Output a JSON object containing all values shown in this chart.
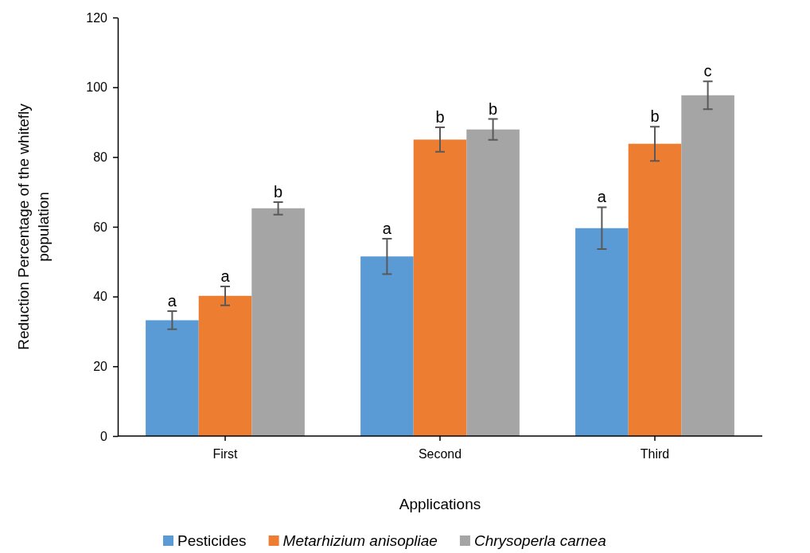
{
  "chart_data": {
    "type": "bar",
    "xlabel": "Applications",
    "ylabel": "Reduction Percentage of the whitefly population",
    "categories": [
      "First",
      "Second",
      "Third"
    ],
    "series": [
      {
        "name": "Pesticides",
        "color": "#5b9bd5",
        "values": [
          33.2,
          51.5,
          59.6
        ],
        "errors": [
          2.6,
          5.1,
          6.0
        ],
        "value_labels": [
          "a",
          "a",
          "a"
        ]
      },
      {
        "name": "Metarhizium anisopliae",
        "color": "#ed7d31",
        "values": [
          40.2,
          85.0,
          83.8
        ],
        "errors": [
          2.7,
          3.5,
          4.9
        ],
        "value_labels": [
          "a",
          "b",
          "b"
        ]
      },
      {
        "name": "Chrysoperla carnea",
        "color": "#a5a5a5",
        "values": [
          65.3,
          87.9,
          97.7
        ],
        "errors": [
          1.8,
          3.0,
          4.0
        ],
        "value_labels": [
          "b",
          "b",
          "c"
        ]
      }
    ],
    "ylim": [
      0,
      120
    ],
    "yticks": [
      0,
      20,
      40,
      60,
      80,
      100,
      120
    ],
    "legend": "bottom"
  }
}
